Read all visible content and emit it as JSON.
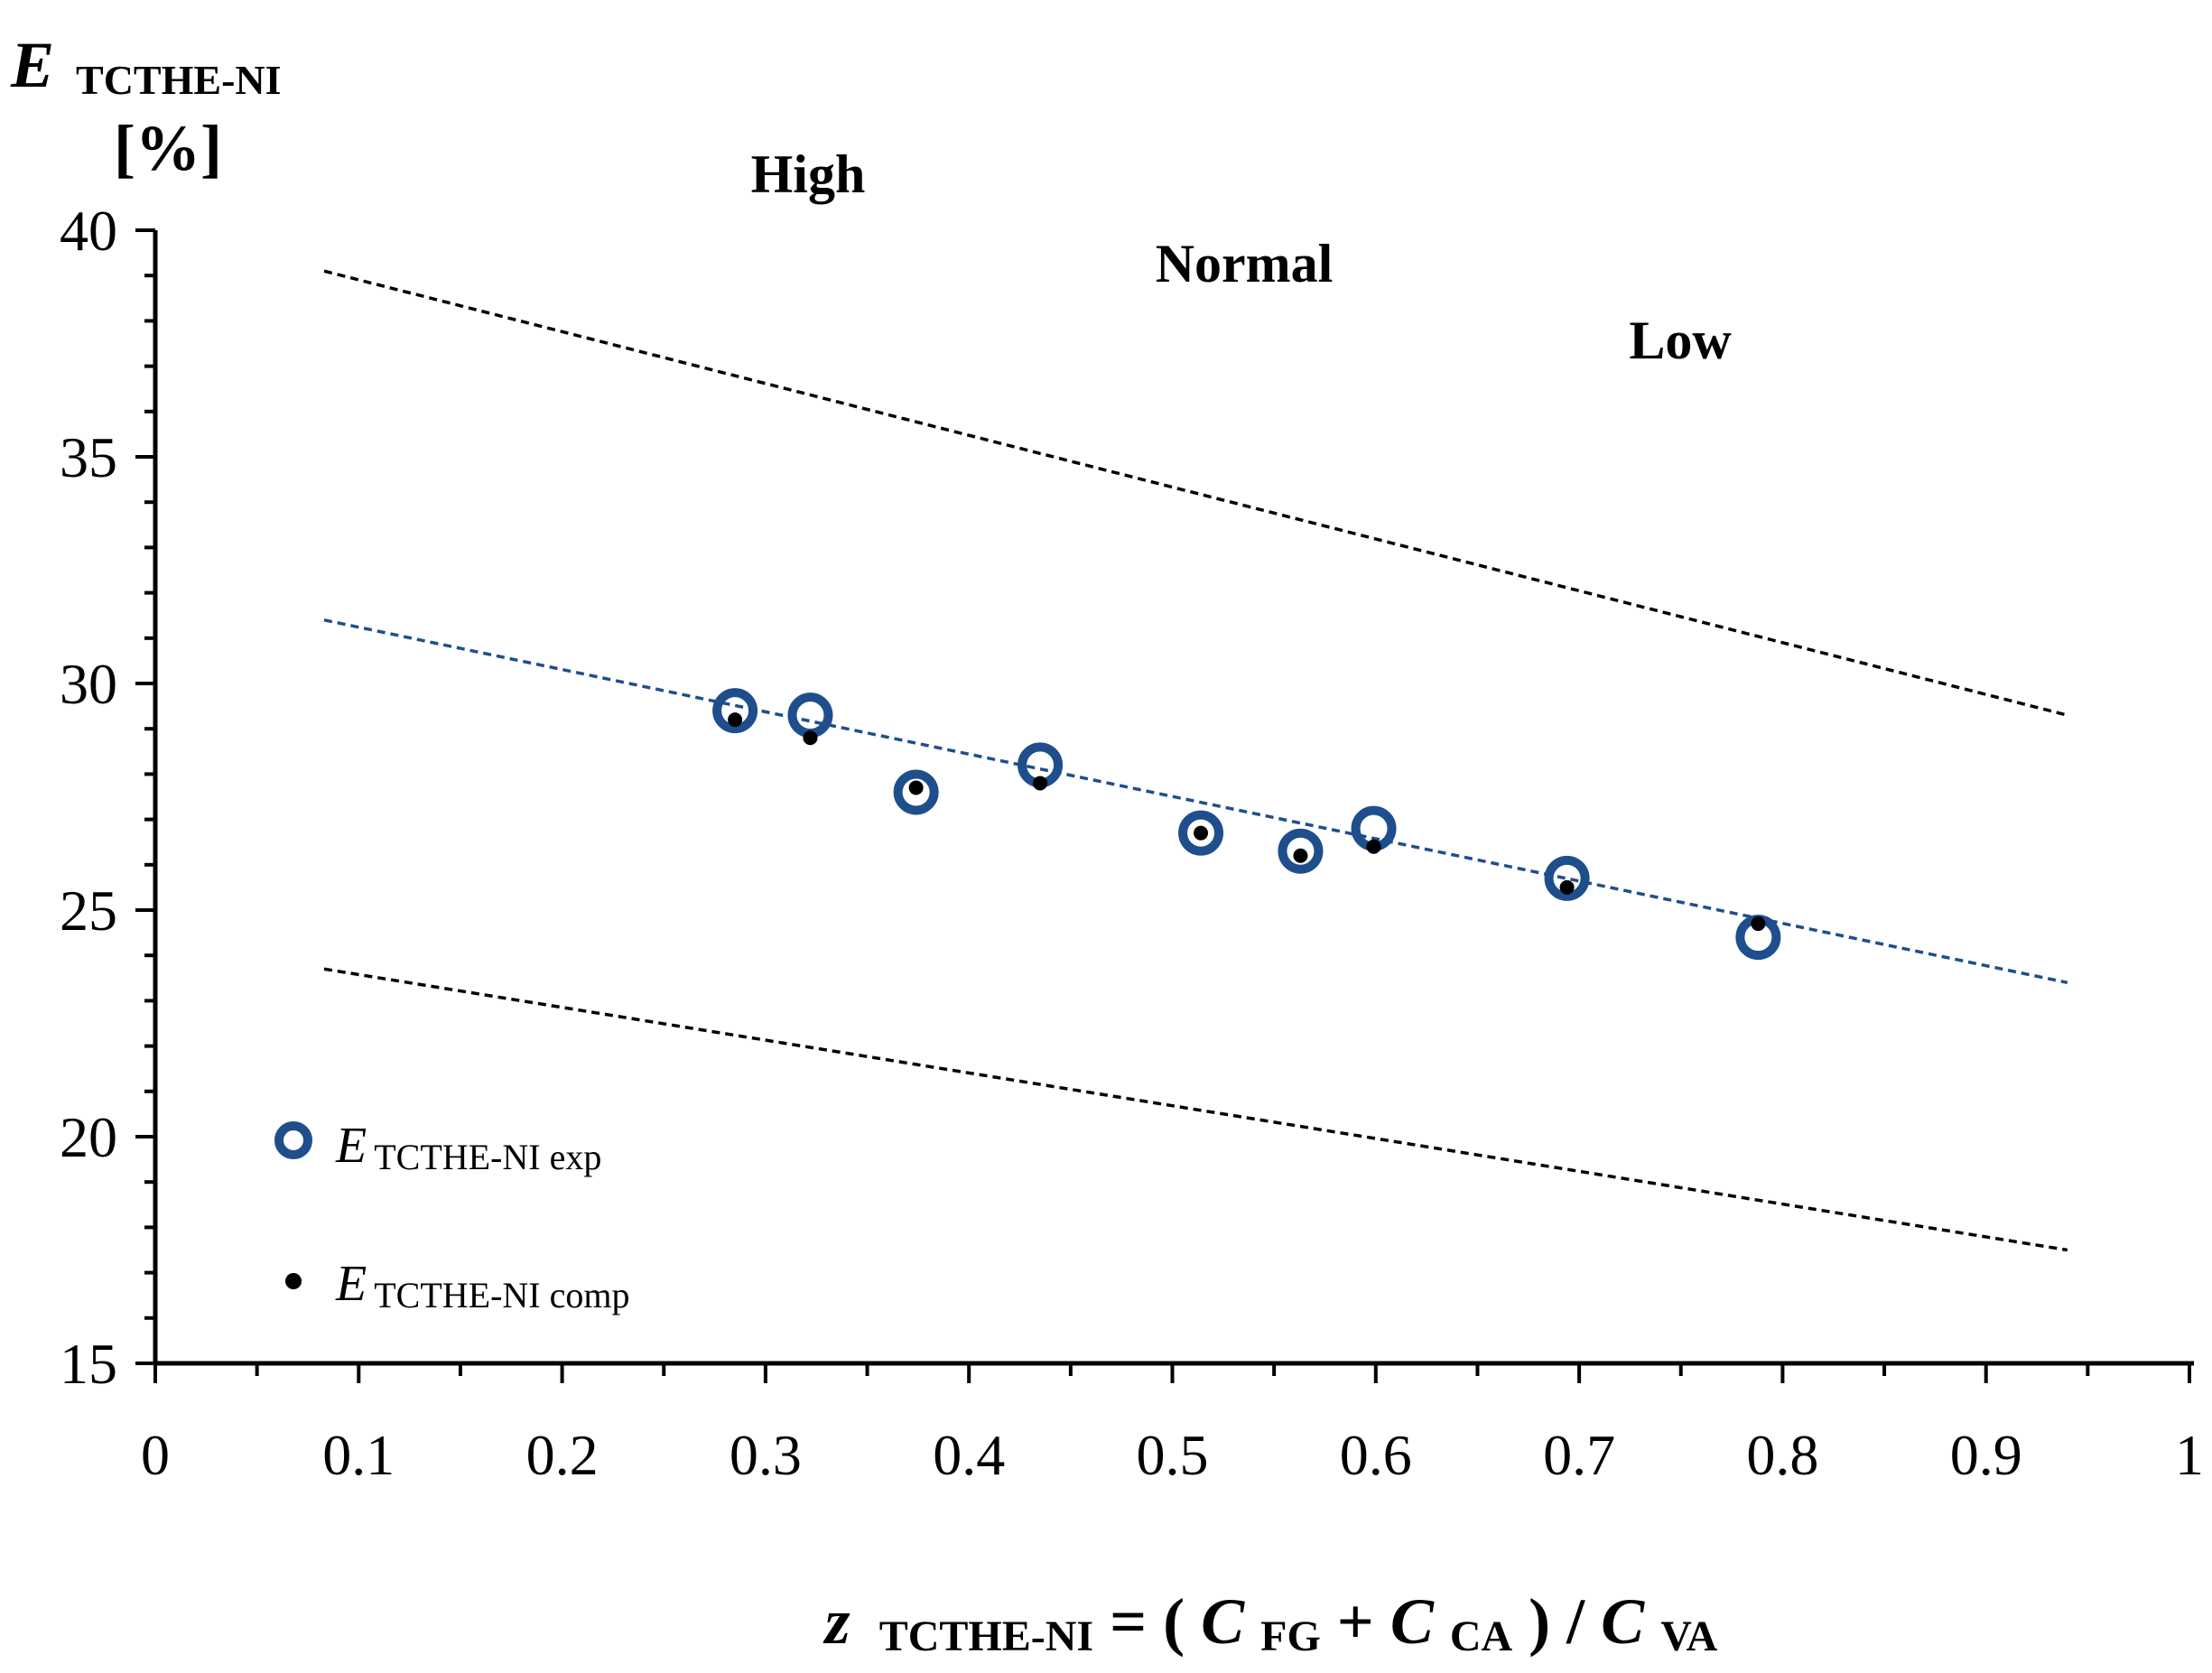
{
  "chart_data": {
    "type": "scatter",
    "y_axis_label": {
      "symbol": "E",
      "subscript": "TCTHE-NI",
      "unit": "[%]"
    },
    "x_axis_label": {
      "var": "z",
      "var_sub": "TCTHE-NI",
      "eq": " = (",
      "c1": "C",
      "c1_sub": "FG",
      "plus": " + ",
      "c2": "C",
      "c2_sub": "CA",
      "div": ") / ",
      "c3": "C",
      "c3_sub": "VA"
    },
    "xlim": [
      0,
      1
    ],
    "ylim": [
      15,
      40
    ],
    "x_ticks": [
      "0",
      "0.1",
      "0.2",
      "0.3",
      "0.4",
      "0.5",
      "0.6",
      "0.7",
      "0.8",
      "0.9",
      "1"
    ],
    "y_ticks": [
      "15",
      "20",
      "25",
      "30",
      "35",
      "40"
    ],
    "region_labels": [
      "High",
      "Normal",
      "Low"
    ],
    "series": [
      {
        "name": {
          "symbol": "E",
          "sub": "TCTHE-NI exp"
        },
        "marker": "open-circle",
        "color": "#1f4e8c",
        "x": [
          0.285,
          0.322,
          0.374,
          0.435,
          0.514,
          0.563,
          0.599,
          0.694,
          0.788
        ],
        "y": [
          29.4,
          29.3,
          27.6,
          28.2,
          26.7,
          26.3,
          26.8,
          25.7,
          24.4
        ]
      },
      {
        "name": {
          "symbol": "E",
          "sub": "TCTHE-NI comp"
        },
        "marker": "dot",
        "color": "#000000",
        "x": [
          0.285,
          0.322,
          0.374,
          0.435,
          0.514,
          0.563,
          0.599,
          0.694,
          0.788
        ],
        "y": [
          29.2,
          28.8,
          27.7,
          27.8,
          26.7,
          26.2,
          26.4,
          25.5,
          24.7
        ]
      }
    ],
    "lines": [
      {
        "style": "dashed",
        "color": "#1f4e8c",
        "x": [
          0.083,
          0.94
        ],
        "y": [
          31.4,
          23.4
        ]
      },
      {
        "style": "dashed",
        "color": "#000000",
        "x": [
          0.083,
          0.94
        ],
        "y": [
          39.1,
          29.3
        ]
      },
      {
        "style": "dashed",
        "color": "#000000",
        "x": [
          0.083,
          0.94
        ],
        "y": [
          23.7,
          17.5
        ]
      }
    ],
    "grid": false
  }
}
